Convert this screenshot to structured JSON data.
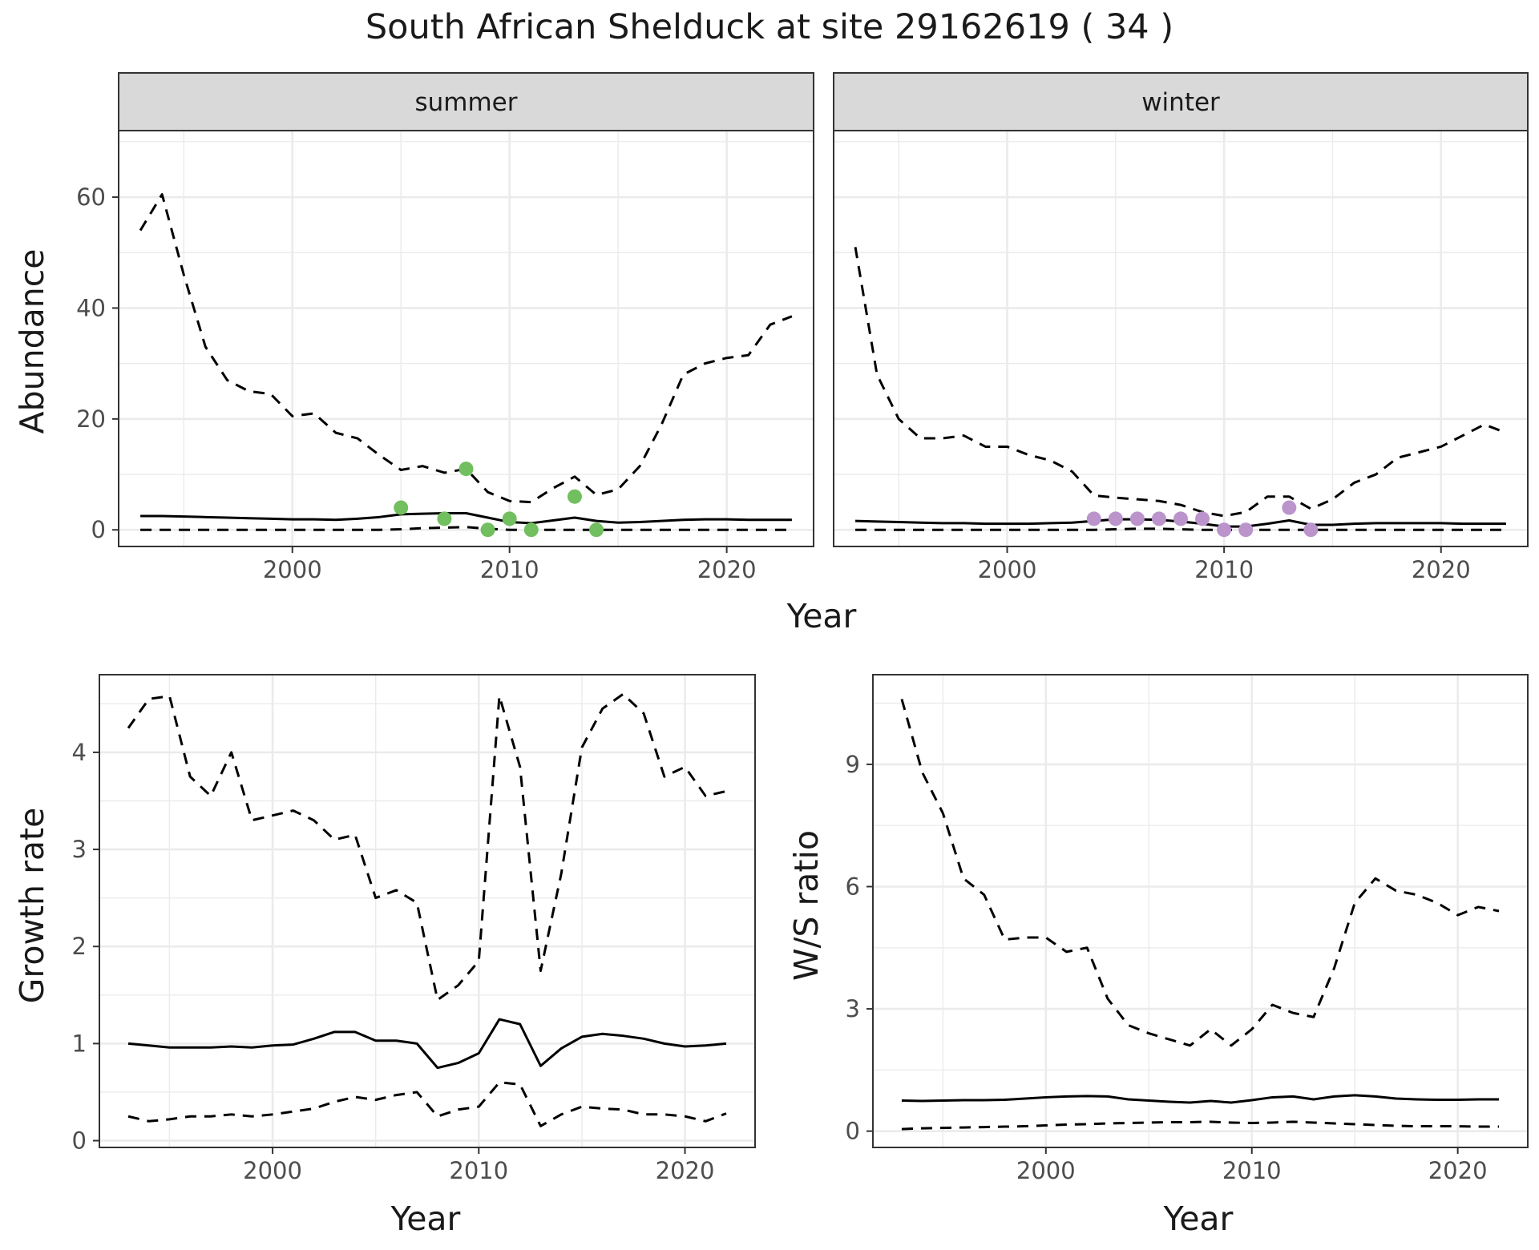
{
  "figure": {
    "title": "South African Shelduck at site 29162619 ( 34 )",
    "colors": {
      "summer_points": "#71BF5E",
      "winter_points": "#BB94CC",
      "line": "#000000",
      "grid": "#EBEBEB",
      "strip_bg": "#D9D9D9"
    }
  },
  "chart_data": [
    {
      "id": "abundance",
      "type": "line",
      "panels": [
        "summer",
        "winter"
      ],
      "xlabel": "Year",
      "ylabel": "Abundance",
      "xlim": [
        1992,
        2024
      ],
      "ylim": [
        -3,
        72
      ],
      "xticks": [
        2000,
        2010,
        2020
      ],
      "yticks": [
        0,
        20,
        40,
        60
      ],
      "grid": true,
      "facets": [
        {
          "label": "summer",
          "point_color": "#71BF5E",
          "x": [
            1993,
            1994,
            1995,
            1996,
            1997,
            1998,
            1999,
            2000,
            2001,
            2002,
            2003,
            2004,
            2005,
            2006,
            2007,
            2008,
            2009,
            2010,
            2011,
            2012,
            2013,
            2014,
            2015,
            2016,
            2017,
            2018,
            2019,
            2020,
            2021,
            2022,
            2023
          ],
          "series": [
            {
              "role": "estimate",
              "style": "solid",
              "values": [
                2.5,
                2.5,
                2.4,
                2.3,
                2.2,
                2.1,
                2.0,
                1.9,
                1.9,
                1.8,
                2.0,
                2.3,
                2.8,
                2.9,
                3.0,
                3.0,
                2.2,
                1.4,
                1.2,
                1.7,
                2.2,
                1.6,
                1.3,
                1.4,
                1.6,
                1.8,
                1.9,
                1.9,
                1.8,
                1.8,
                1.8
              ]
            },
            {
              "role": "upper",
              "style": "dashed",
              "values": [
                54,
                60.5,
                46,
                33,
                27,
                25,
                24.5,
                20.5,
                21,
                17.5,
                16.5,
                13.5,
                10.8,
                11.5,
                10.3,
                11,
                6.8,
                5.2,
                5,
                7.5,
                9.6,
                6.3,
                7.3,
                11.5,
                19,
                28,
                30,
                31,
                31.5,
                37,
                38.5
              ]
            },
            {
              "role": "lower",
              "style": "dashed",
              "values": [
                0,
                0,
                0,
                0,
                0,
                0,
                0,
                0,
                0,
                0,
                0,
                0,
                0.1,
                0.3,
                0.4,
                0.5,
                0.2,
                0,
                0,
                0,
                0,
                0,
                0,
                0,
                0,
                0,
                0,
                0,
                0,
                0,
                0
              ]
            }
          ],
          "observed": {
            "x": [
              2005,
              2007,
              2008,
              2009,
              2010,
              2011,
              2013,
              2014
            ],
            "y": [
              4,
              2,
              11,
              0,
              2,
              0,
              6,
              0
            ]
          }
        },
        {
          "label": "winter",
          "point_color": "#BB94CC",
          "x": [
            1993,
            1994,
            1995,
            1996,
            1997,
            1998,
            1999,
            2000,
            2001,
            2002,
            2003,
            2004,
            2005,
            2006,
            2007,
            2008,
            2009,
            2010,
            2011,
            2012,
            2013,
            2014,
            2015,
            2016,
            2017,
            2018,
            2019,
            2020,
            2021,
            2022,
            2023
          ],
          "series": [
            {
              "role": "estimate",
              "style": "solid",
              "values": [
                1.6,
                1.5,
                1.4,
                1.3,
                1.2,
                1.2,
                1.1,
                1.1,
                1.1,
                1.2,
                1.3,
                1.6,
                1.9,
                1.9,
                1.8,
                1.5,
                1.1,
                0.6,
                0.6,
                1.1,
                1.7,
                0.9,
                0.9,
                1.1,
                1.2,
                1.2,
                1.2,
                1.2,
                1.1,
                1.1,
                1.1
              ]
            },
            {
              "role": "upper",
              "style": "dashed",
              "values": [
                51,
                28,
                20,
                16.5,
                16.5,
                17,
                15,
                15,
                13.5,
                12.5,
                10.5,
                6.2,
                5.8,
                5.5,
                5.2,
                4.5,
                3.2,
                2.5,
                3.2,
                6,
                6,
                3.8,
                5.5,
                8.5,
                10,
                13,
                14,
                15,
                17,
                19,
                17.5
              ]
            },
            {
              "role": "lower",
              "style": "dashed",
              "values": [
                0,
                0,
                0,
                0,
                0,
                0,
                0,
                0,
                0,
                0,
                0,
                0,
                0.1,
                0.2,
                0.2,
                0.1,
                0,
                0,
                0,
                0,
                0,
                0,
                0,
                0,
                0,
                0,
                0,
                0,
                0,
                0,
                0
              ]
            }
          ],
          "observed": {
            "x": [
              2004,
              2005,
              2006,
              2007,
              2008,
              2009,
              2010,
              2011,
              2013,
              2014
            ],
            "y": [
              2,
              2,
              2,
              2,
              2,
              2,
              0,
              0,
              4,
              0
            ]
          }
        }
      ]
    },
    {
      "id": "growth",
      "type": "line",
      "xlabel": "Year",
      "ylabel": "Growth rate",
      "xlim": [
        1991.6,
        2023.4
      ],
      "ylim": [
        -0.07,
        4.8
      ],
      "xticks": [
        2000,
        2010,
        2020
      ],
      "yticks": [
        0,
        1,
        2,
        3,
        4
      ],
      "grid": true,
      "x": [
        1993,
        1994,
        1995,
        1996,
        1997,
        1998,
        1999,
        2000,
        2001,
        2002,
        2003,
        2004,
        2005,
        2006,
        2007,
        2008,
        2009,
        2010,
        2011,
        2012,
        2013,
        2014,
        2015,
        2016,
        2017,
        2018,
        2019,
        2020,
        2021,
        2022
      ],
      "series": [
        {
          "role": "estimate",
          "style": "solid",
          "values": [
            1.0,
            0.98,
            0.96,
            0.96,
            0.96,
            0.97,
            0.96,
            0.98,
            0.99,
            1.05,
            1.12,
            1.12,
            1.03,
            1.03,
            1.0,
            0.75,
            0.8,
            0.9,
            1.25,
            1.2,
            0.77,
            0.95,
            1.07,
            1.1,
            1.08,
            1.05,
            1.0,
            0.97,
            0.98,
            1.0
          ]
        },
        {
          "role": "upper",
          "style": "dashed",
          "values": [
            4.25,
            4.55,
            4.58,
            3.75,
            3.55,
            4.0,
            3.3,
            3.35,
            3.4,
            3.3,
            3.1,
            3.15,
            2.5,
            2.58,
            2.45,
            1.45,
            1.6,
            1.85,
            4.58,
            3.85,
            1.75,
            2.75,
            4.05,
            4.45,
            4.6,
            4.4,
            3.75,
            3.85,
            3.55,
            3.6
          ]
        },
        {
          "role": "lower",
          "style": "dashed",
          "values": [
            0.25,
            0.2,
            0.22,
            0.25,
            0.25,
            0.27,
            0.25,
            0.27,
            0.3,
            0.33,
            0.4,
            0.45,
            0.42,
            0.47,
            0.5,
            0.25,
            0.32,
            0.35,
            0.6,
            0.58,
            0.15,
            0.27,
            0.35,
            0.33,
            0.32,
            0.27,
            0.27,
            0.25,
            0.2,
            0.28
          ]
        }
      ]
    },
    {
      "id": "ws_ratio",
      "type": "line",
      "xlabel": "Year",
      "ylabel": "W/S ratio",
      "xlim": [
        1991.6,
        2023.4
      ],
      "ylim": [
        -0.4,
        11.2
      ],
      "xticks": [
        2000,
        2010,
        2020
      ],
      "yticks": [
        0,
        3,
        6,
        9
      ],
      "grid": true,
      "x": [
        1993,
        1994,
        1995,
        1996,
        1997,
        1998,
        1999,
        2000,
        2001,
        2002,
        2003,
        2004,
        2005,
        2006,
        2007,
        2008,
        2009,
        2010,
        2011,
        2012,
        2013,
        2014,
        2015,
        2016,
        2017,
        2018,
        2019,
        2020,
        2021,
        2022
      ],
      "series": [
        {
          "role": "estimate",
          "style": "solid",
          "values": [
            0.75,
            0.74,
            0.75,
            0.76,
            0.76,
            0.77,
            0.8,
            0.83,
            0.85,
            0.86,
            0.85,
            0.78,
            0.75,
            0.72,
            0.7,
            0.74,
            0.7,
            0.76,
            0.83,
            0.85,
            0.78,
            0.85,
            0.88,
            0.85,
            0.8,
            0.78,
            0.77,
            0.77,
            0.78,
            0.78
          ]
        },
        {
          "role": "upper",
          "style": "dashed",
          "values": [
            10.6,
            8.8,
            7.8,
            6.2,
            5.8,
            4.7,
            4.75,
            4.75,
            4.4,
            4.5,
            3.25,
            2.6,
            2.4,
            2.25,
            2.1,
            2.5,
            2.1,
            2.5,
            3.1,
            2.9,
            2.8,
            4.0,
            5.6,
            6.2,
            5.9,
            5.8,
            5.6,
            5.3,
            5.5,
            5.4
          ]
        },
        {
          "role": "lower",
          "style": "dashed",
          "values": [
            0.05,
            0.07,
            0.08,
            0.09,
            0.1,
            0.11,
            0.12,
            0.14,
            0.16,
            0.17,
            0.19,
            0.2,
            0.21,
            0.22,
            0.22,
            0.23,
            0.21,
            0.2,
            0.21,
            0.23,
            0.21,
            0.19,
            0.17,
            0.15,
            0.13,
            0.12,
            0.12,
            0.12,
            0.11,
            0.11
          ]
        }
      ]
    }
  ]
}
